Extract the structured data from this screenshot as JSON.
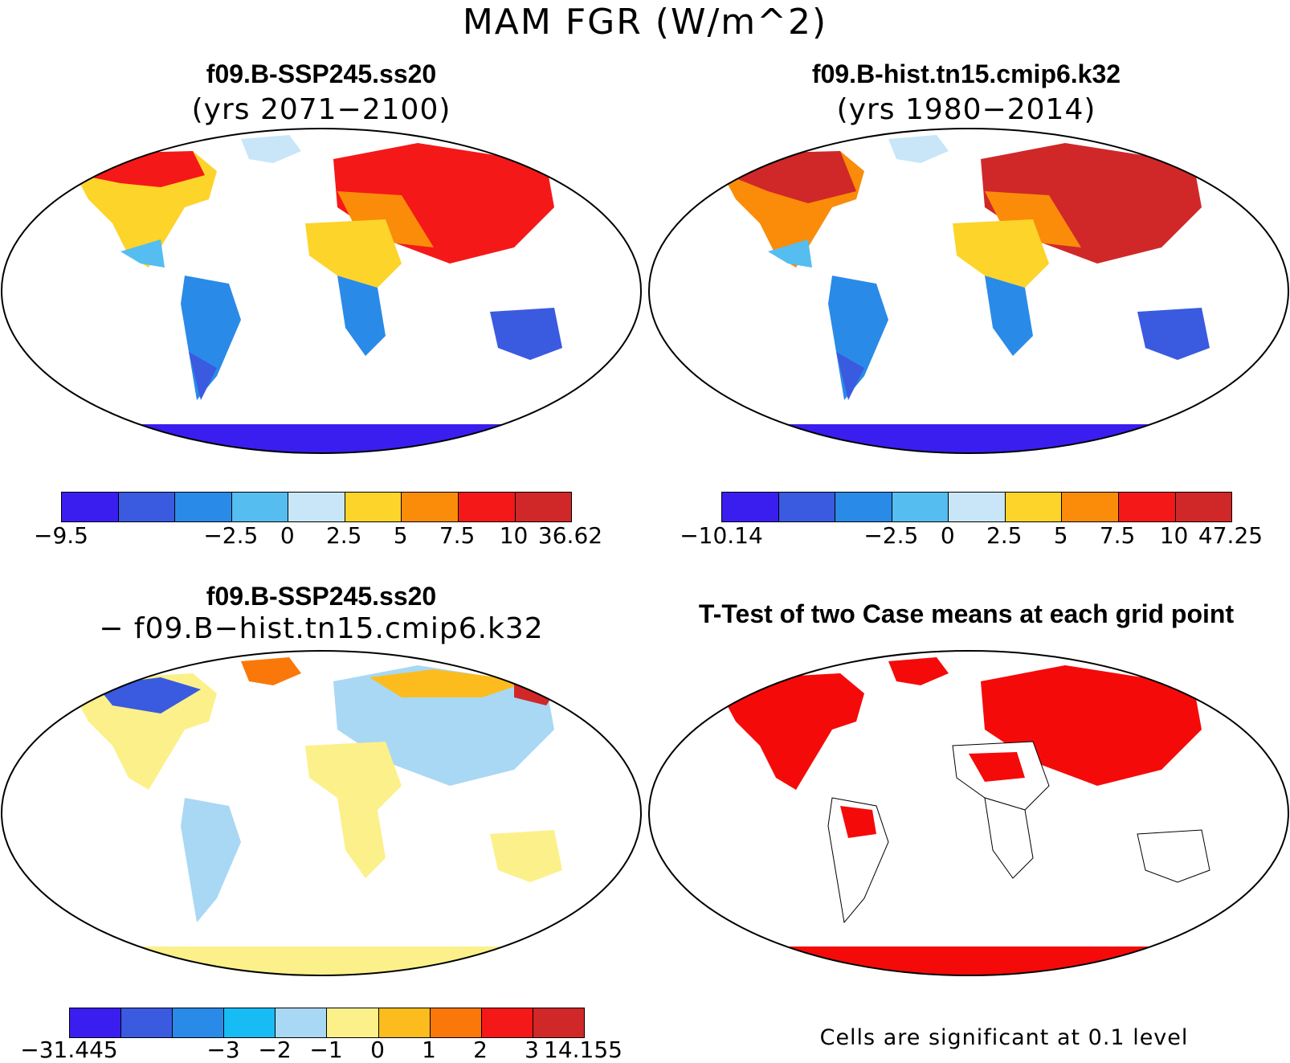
{
  "title": "MAM FGR (W/m^2)",
  "panels": {
    "top_left": {
      "case": "f09.B-SSP245.ss20",
      "years": "(yrs 2071−2100)"
    },
    "top_right": {
      "case": "f09.B-hist.tn15.cmip6.k32",
      "years": "(yrs 1980−2014)"
    },
    "bottom_left": {
      "case": "f09.B-SSP245.ss20",
      "minus_case": "− f09.B−hist.tn15.cmip6.k32"
    },
    "bottom_right": {
      "title": "T-Test of two Case means at each grid point",
      "note": "Cells are significant at 0.1 level"
    }
  },
  "colorbars": {
    "top_left": {
      "colors": [
        "#3a1ef0",
        "#3a5ae0",
        "#2a8ae8",
        "#55bdf0",
        "#c8e6f8",
        "#fcd42a",
        "#fa8c0a",
        "#f51818",
        "#d02828"
      ],
      "ticks": [
        "−9.5",
        "−2.5",
        "0",
        "2.5",
        "5",
        "7.5",
        "10",
        "36.62"
      ]
    },
    "top_right": {
      "colors": [
        "#3a1ef0",
        "#3a5ae0",
        "#2a8ae8",
        "#55bdf0",
        "#c8e6f8",
        "#fcd42a",
        "#fa8c0a",
        "#f51818",
        "#d02828"
      ],
      "ticks": [
        "−10.14",
        "−2.5",
        "0",
        "2.5",
        "5",
        "7.5",
        "10",
        "47.25"
      ]
    },
    "bottom_left": {
      "colors": [
        "#3a1ef0",
        "#3a5ae0",
        "#2a8ae8",
        "#18bcf5",
        "#a8d8f4",
        "#fcf08a",
        "#fcbc1e",
        "#fa780a",
        "#f51818",
        "#d02828"
      ],
      "ticks": [
        "−31.445",
        "−3",
        "−2",
        "−1",
        "0",
        "1",
        "2",
        "3",
        "14.155"
      ]
    }
  },
  "map_colors": {
    "land_cold": "#3a5ae0",
    "land_cool": "#55bdf0",
    "land_warm": "#fcd42a",
    "land_hot": "#f51818",
    "diff_pos": "#fcf08a",
    "diff_neg": "#a8d8f4",
    "sig": "#f50a0a",
    "antarctica": "#3a1ef0"
  }
}
